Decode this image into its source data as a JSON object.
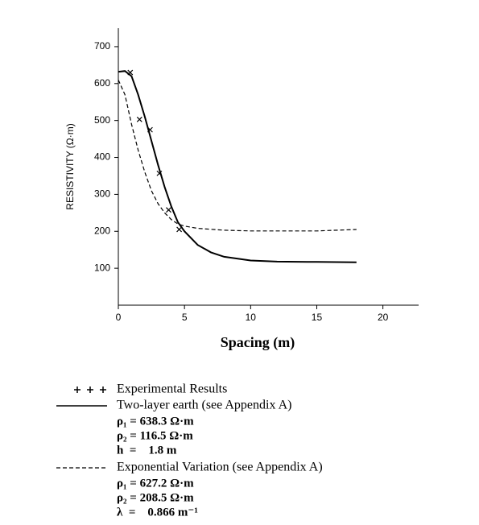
{
  "chart_data": {
    "type": "line",
    "x_label": "Spacing (m)",
    "y_label": "RESISTIVITY (Ω·m)",
    "xlim": [
      0,
      22.7
    ],
    "ylim": [
      0,
      750
    ],
    "xticks": [
      0,
      5,
      10,
      15,
      20
    ],
    "yticks": [
      100,
      200,
      300,
      400,
      500,
      600,
      700
    ],
    "color": "#000000",
    "series": [
      {
        "name": "Experimental Results",
        "type": "scatter",
        "style": "x",
        "x": [
          0.9,
          1.6,
          2.4,
          3.1,
          3.8,
          4.6
        ],
        "y": [
          630,
          503,
          475,
          357,
          258,
          205
        ],
        "params": []
      },
      {
        "name": "Two-layer earth (see Appendix A)",
        "type": "line",
        "style": "solid",
        "x": [
          0,
          0.5,
          1,
          1.5,
          2,
          2.5,
          3,
          3.5,
          4,
          4.5,
          5,
          6,
          7,
          8,
          10,
          12,
          15,
          18
        ],
        "y": [
          632,
          634,
          620,
          570,
          510,
          445,
          380,
          320,
          268,
          225,
          200,
          163,
          143,
          131,
          121,
          118,
          117,
          116
        ],
        "params": [
          "ρ₁ = 638.3 Ω·m",
          "ρ₂ = 116.5 Ω·m",
          "h  =    1.8 m"
        ]
      },
      {
        "name": "Exponential Variation (see Appendix A)",
        "type": "line",
        "style": "dashed",
        "x": [
          0,
          0.5,
          1,
          1.5,
          2,
          2.5,
          3,
          3.5,
          4,
          4.5,
          5,
          6,
          8,
          10,
          15,
          18
        ],
        "y": [
          610,
          570,
          490,
          420,
          360,
          310,
          275,
          250,
          232,
          220,
          214,
          208,
          203,
          201,
          201,
          205
        ],
        "params": [
          "ρ₁ = 627.2 Ω·m",
          "ρ₂ = 208.5 Ω·m",
          "λ  =    0.866 m⁻¹"
        ]
      }
    ]
  }
}
